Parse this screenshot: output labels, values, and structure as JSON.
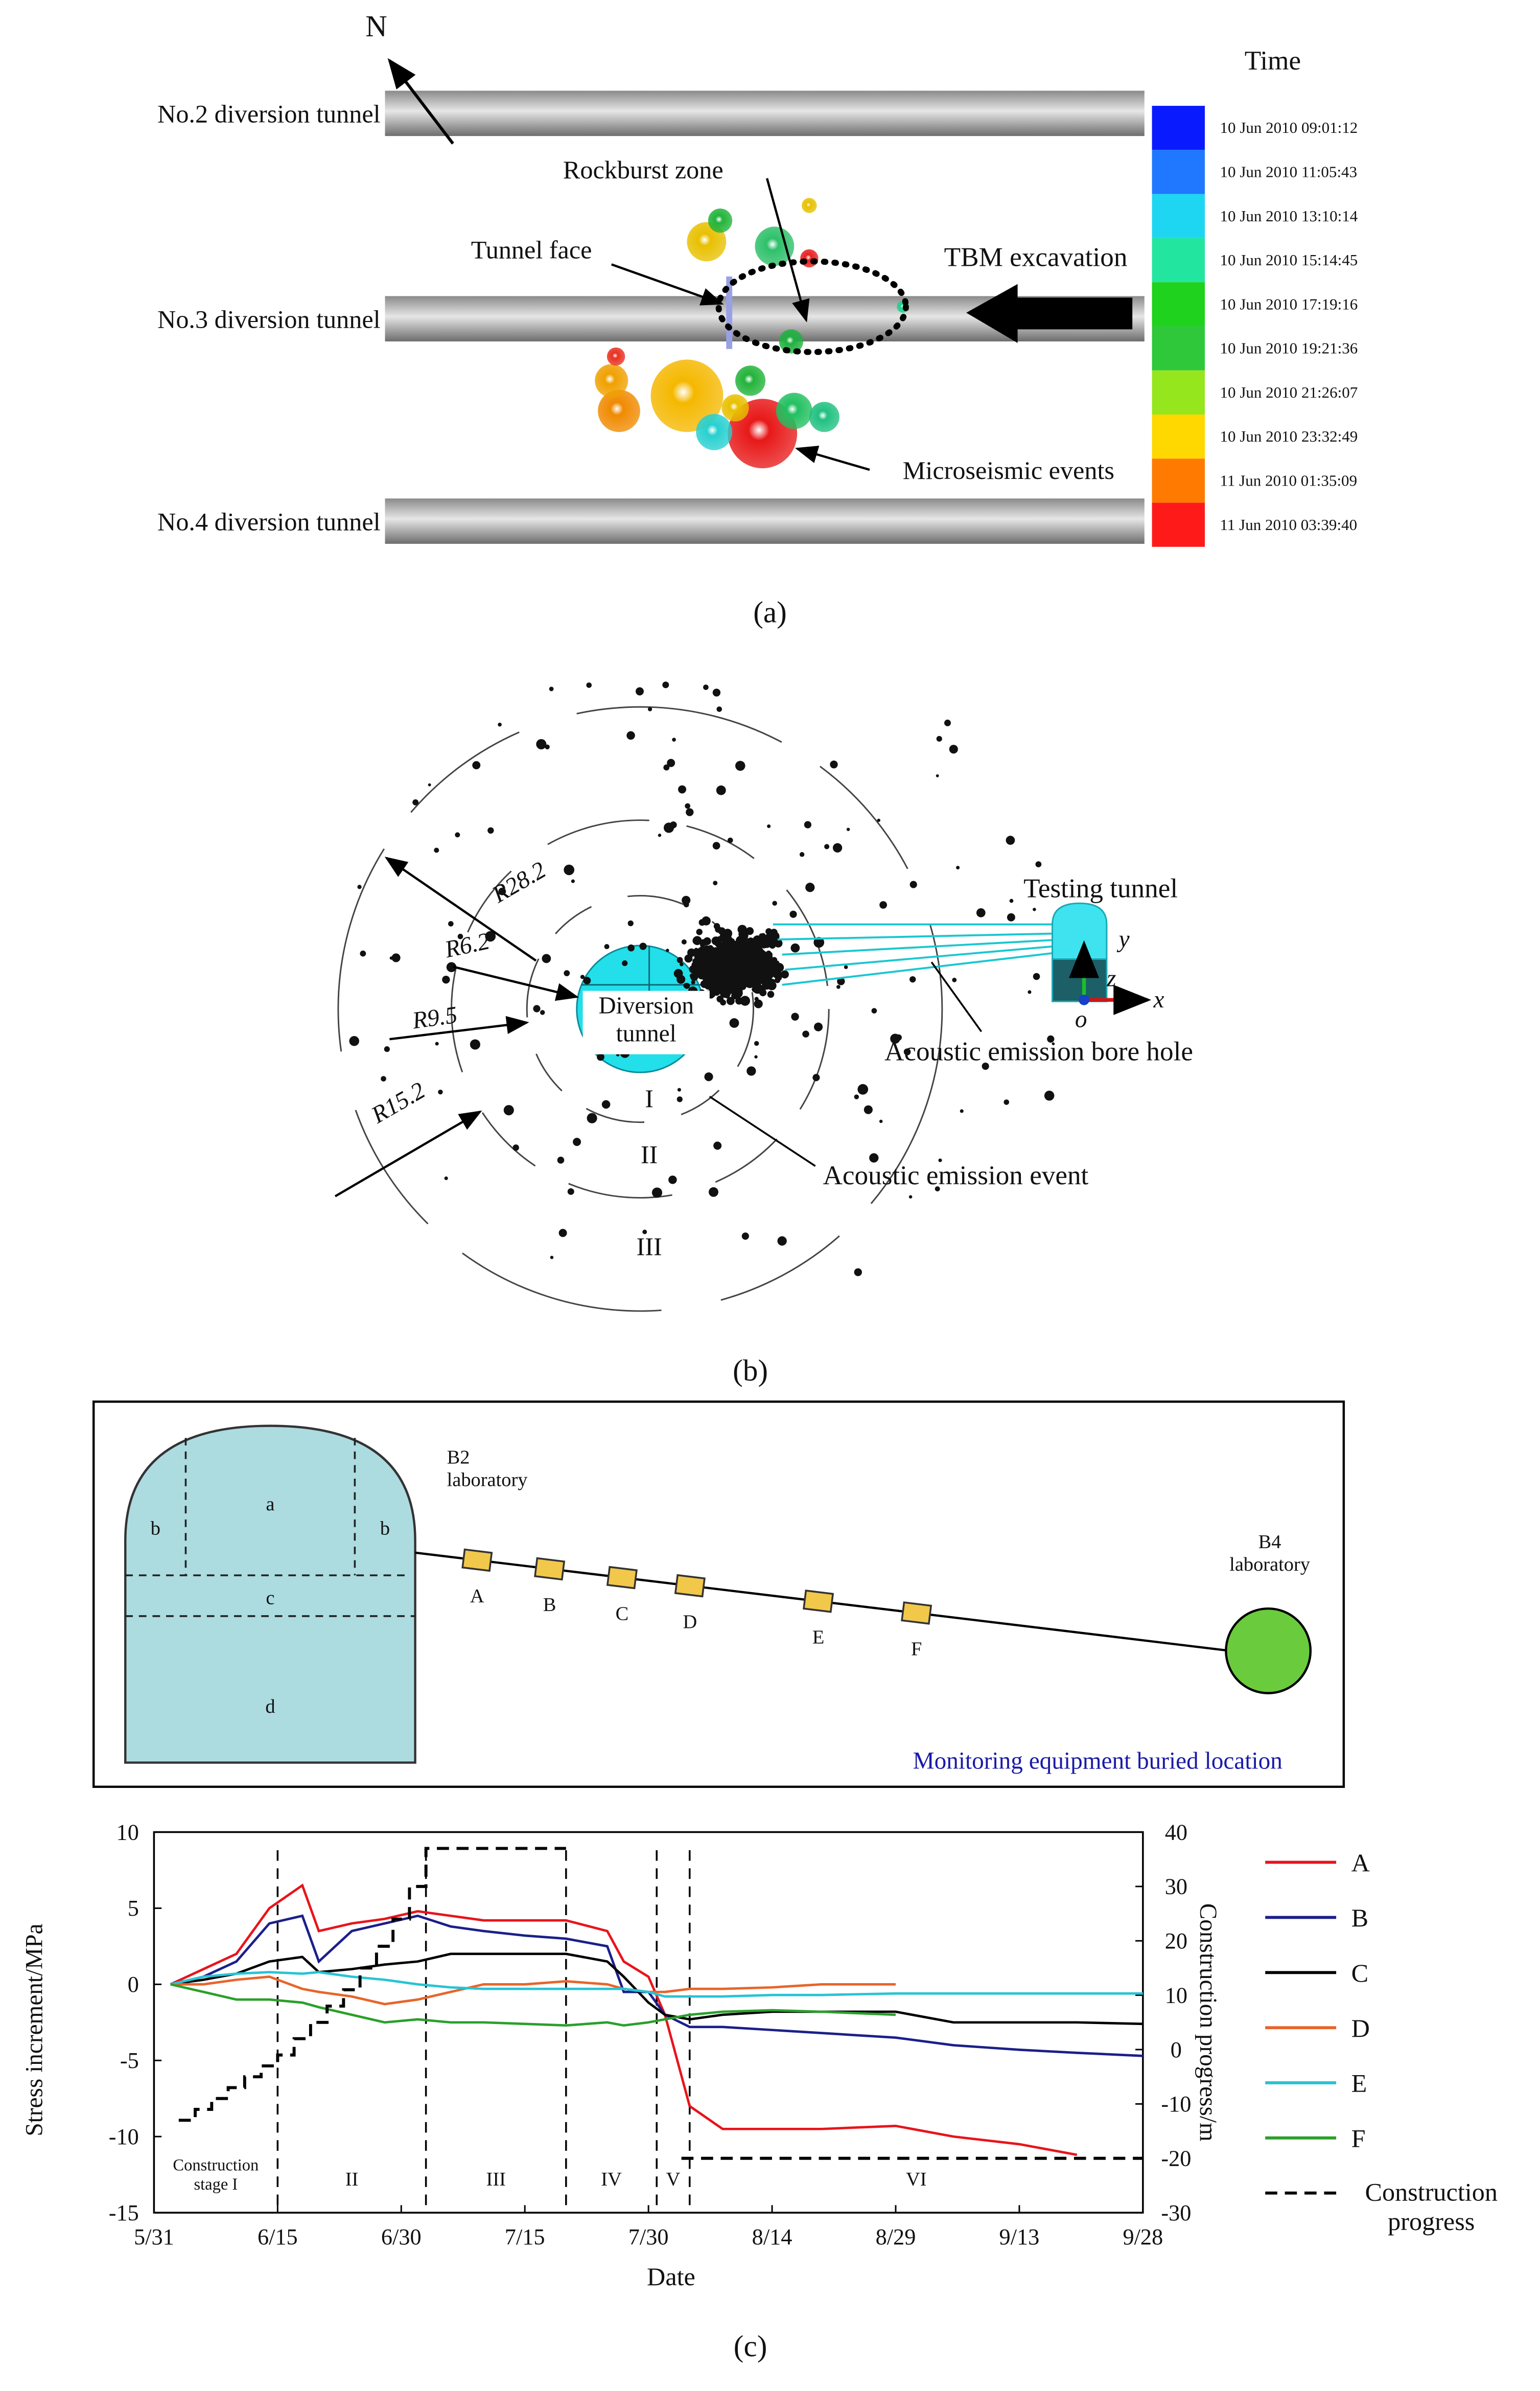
{
  "panel_a": {
    "north": "N",
    "tunnels": [
      "No.2 diversion tunnel",
      "No.3 diversion tunnel",
      "No.4 diversion tunnel"
    ],
    "rockburst_zone": "Rockburst zone",
    "tunnel_face": "Tunnel face",
    "tbm_excavation": "TBM excavation",
    "microseismic_events": "Microseismic events",
    "legend_title": "Time",
    "legend": [
      {
        "label": "10 Jun 2010 09:01:12",
        "color": "#0a1aff"
      },
      {
        "label": "10 Jun 2010 11:05:43",
        "color": "#1f78ff"
      },
      {
        "label": "10 Jun 2010 13:10:14",
        "color": "#1ed6f2"
      },
      {
        "label": "10 Jun 2010 15:14:45",
        "color": "#22e6a0"
      },
      {
        "label": "10 Jun 2010 17:19:16",
        "color": "#1ed21e"
      },
      {
        "label": "10 Jun 2010 19:21:36",
        "color": "#2ec83a"
      },
      {
        "label": "10 Jun 2010 21:26:07",
        "color": "#96e61e"
      },
      {
        "label": "10 Jun 2010 23:32:49",
        "color": "#ffd800"
      },
      {
        "label": "11 Jun 2010 01:35:09",
        "color": "#ff7a00"
      },
      {
        "label": "11 Jun 2010 03:39:40",
        "color": "#ff1a1a"
      }
    ],
    "caption": "(a)"
  },
  "panel_b": {
    "radii": [
      "R28.2",
      "R6.2",
      "R9.5",
      "R15.2"
    ],
    "diversion_tunnel": "Diversion tunnel",
    "zones": [
      "I",
      "II",
      "III"
    ],
    "testing_tunnel": "Testing tunnel",
    "bore_hole": "Acoustic emission bore hole",
    "event": "Acoustic emission event",
    "axes": [
      "y",
      "z",
      "x",
      "o"
    ],
    "caption": "(b)"
  },
  "panel_c": {
    "b2": "B2 laboratory",
    "sections": [
      "a",
      "b",
      "b",
      "c",
      "d"
    ],
    "sensors": [
      "A",
      "B",
      "C",
      "D",
      "E",
      "F"
    ],
    "b4": "B4 laboratory",
    "note": "Monitoring equipment buried location",
    "caption": "(c)"
  },
  "chart_data": {
    "type": "line",
    "x_label": "Date",
    "y_label": "Stress increment/MPa",
    "y2_label": "Construction progress/m",
    "x": [
      "6/2",
      "6/6",
      "6/10",
      "6/14",
      "6/18",
      "6/20",
      "6/24",
      "6/28",
      "7/2",
      "7/6",
      "7/10",
      "7/15",
      "7/20",
      "7/25",
      "7/27",
      "7/30",
      "8/1",
      "8/4",
      "8/8",
      "8/14",
      "8/20",
      "8/29",
      "9/5",
      "9/13",
      "9/20",
      "9/28"
    ],
    "xlim": [
      "5/31",
      "9/28"
    ],
    "xticks": [
      "5/31",
      "6/15",
      "6/30",
      "7/15",
      "7/30",
      "8/14",
      "8/29",
      "9/13",
      "9/28"
    ],
    "ylim": [
      -15,
      10
    ],
    "yticks": [
      10,
      5,
      0,
      -5,
      -10,
      -15
    ],
    "y2lim": [
      -30,
      40
    ],
    "y2ticks": [
      40,
      30,
      20,
      10,
      0,
      -10,
      -20,
      -30
    ],
    "stages": [
      "Construction stage I",
      "II",
      "III",
      "IV",
      "V",
      "VI"
    ],
    "stage_bounds": [
      "6/15",
      "7/3",
      "7/20",
      "7/31",
      "8/4"
    ],
    "legend": "right",
    "series": [
      {
        "name": "A",
        "color": "#e8141b",
        "values": [
          0,
          1,
          2,
          5,
          6.5,
          3.5,
          4,
          4.3,
          4.8,
          4.5,
          4.2,
          4.2,
          4.2,
          3.5,
          1.5,
          0.5,
          -2,
          -8,
          -9.5,
          -9.5,
          -9.5,
          -9.3,
          -10,
          -10.5,
          -11.2,
          null
        ]
      },
      {
        "name": "B",
        "color": "#1b1f8a",
        "values": [
          0,
          0.5,
          1.5,
          4,
          4.5,
          1.5,
          3.5,
          4,
          4.5,
          3.8,
          3.5,
          3.2,
          3,
          2.5,
          -0.5,
          -0.5,
          -2,
          -2.8,
          -2.8,
          -3,
          -3.2,
          -3.5,
          -4,
          -4.3,
          -4.5,
          -4.7
        ]
      },
      {
        "name": "C",
        "color": "#000000",
        "values": [
          0,
          0.3,
          0.7,
          1.5,
          1.8,
          0.8,
          1,
          1.3,
          1.5,
          2,
          2,
          2,
          2,
          1.5,
          0.5,
          -1.2,
          -2,
          -2.3,
          -2,
          -1.8,
          -1.8,
          -1.8,
          -2.5,
          -2.5,
          -2.5,
          -2.6
        ]
      },
      {
        "name": "D",
        "color": "#e8642a",
        "values": [
          0,
          0,
          0.3,
          0.5,
          -0.3,
          -0.5,
          -0.8,
          -1.3,
          -1,
          -0.5,
          0,
          0,
          0.2,
          0,
          -0.3,
          -0.5,
          -0.5,
          -0.3,
          -0.3,
          -0.2,
          0,
          0,
          null,
          null,
          null,
          null
        ]
      },
      {
        "name": "E",
        "color": "#27c4d4",
        "values": [
          0,
          0.5,
          0.7,
          0.8,
          0.7,
          0.8,
          0.5,
          0.3,
          0,
          -0.2,
          -0.3,
          -0.3,
          -0.3,
          -0.3,
          -0.3,
          -0.5,
          -0.8,
          -0.8,
          -0.8,
          -0.7,
          -0.7,
          -0.6,
          -0.6,
          -0.6,
          -0.6,
          -0.6
        ]
      },
      {
        "name": "F",
        "color": "#2aa02a",
        "values": [
          0,
          -0.5,
          -1,
          -1,
          -1.2,
          -1.5,
          -2,
          -2.5,
          -2.3,
          -2.5,
          -2.5,
          -2.6,
          -2.7,
          -2.5,
          -2.7,
          -2.5,
          -2.3,
          -2,
          -1.8,
          -1.7,
          -1.8,
          -2,
          null,
          null,
          null,
          null
        ]
      },
      {
        "name": "Construction progress",
        "color": "#000000",
        "axis": "y2",
        "dashed": true,
        "steps": true,
        "x": [
          "6/3",
          "6/5",
          "6/7",
          "6/9",
          "6/11",
          "6/13",
          "6/15",
          "6/17",
          "6/19",
          "6/21",
          "6/23",
          "6/25",
          "6/27",
          "6/29",
          "7/1",
          "7/3",
          "7/20",
          "7/31",
          "8/3",
          "9/28"
        ],
        "values": [
          -13,
          -11,
          -9,
          -7,
          -5,
          -3,
          -1,
          2,
          5,
          8,
          11,
          15,
          19,
          24,
          30,
          37,
          37,
          null,
          -20,
          -20
        ]
      }
    ]
  }
}
